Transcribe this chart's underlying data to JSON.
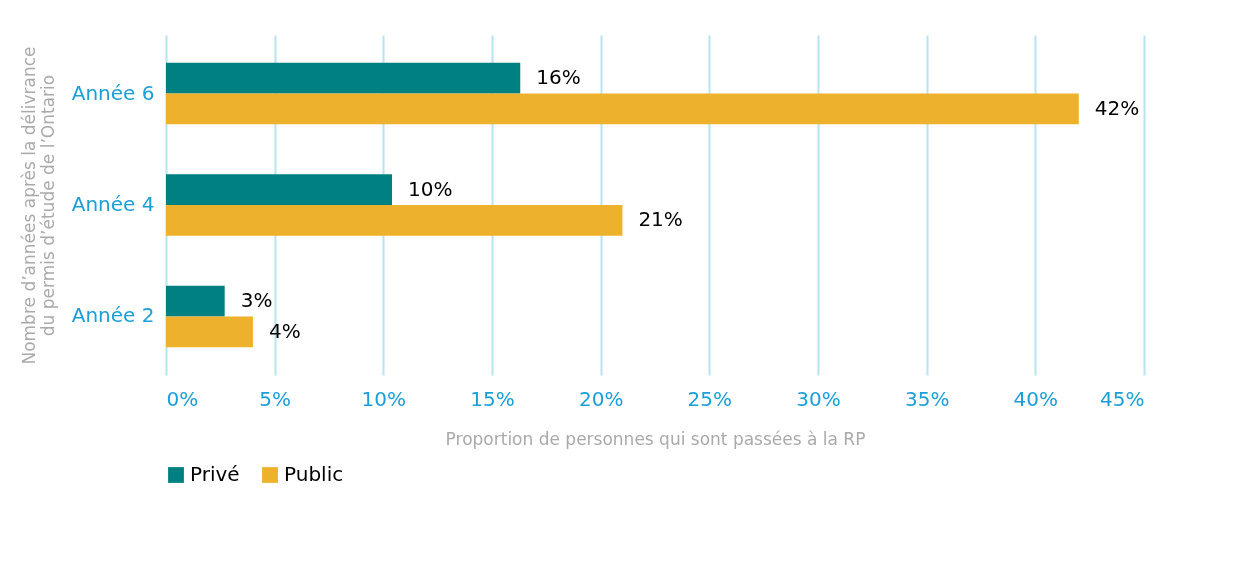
{
  "chart_data": {
    "type": "bar",
    "orientation": "horizontal",
    "xlabel": "Proportion de personnes qui sont passées à la RP",
    "ylabel": "Nombre d’années après la délivrance du permis d’étude de l’Ontario",
    "categories": [
      "Année 6",
      "Année 4",
      "Année 2"
    ],
    "series": [
      {
        "name": "Privé",
        "color": "#008080",
        "values": [
          16.3,
          10.4,
          2.7
        ],
        "value_labels": [
          "16%",
          "10%",
          "3%"
        ]
      },
      {
        "name": "Public",
        "color": "#eeb12b",
        "values": [
          42,
          21,
          4
        ],
        "value_labels": [
          "42%",
          "21%",
          "4%"
        ]
      }
    ],
    "xlim": [
      0,
      45
    ],
    "xticks": [
      {
        "value": 0,
        "label": "0%"
      },
      {
        "value": 5,
        "label": "5%"
      },
      {
        "value": 10,
        "label": "10%"
      },
      {
        "value": 15,
        "label": "15%"
      },
      {
        "value": 20,
        "label": "20%"
      },
      {
        "value": 25,
        "label": "25%"
      },
      {
        "value": 30,
        "label": "30%"
      },
      {
        "value": 35,
        "label": "35%"
      },
      {
        "value": 40,
        "label": "40%"
      },
      {
        "value": 45,
        "label": "45%"
      }
    ],
    "grid": "x",
    "legend": "bottom"
  }
}
